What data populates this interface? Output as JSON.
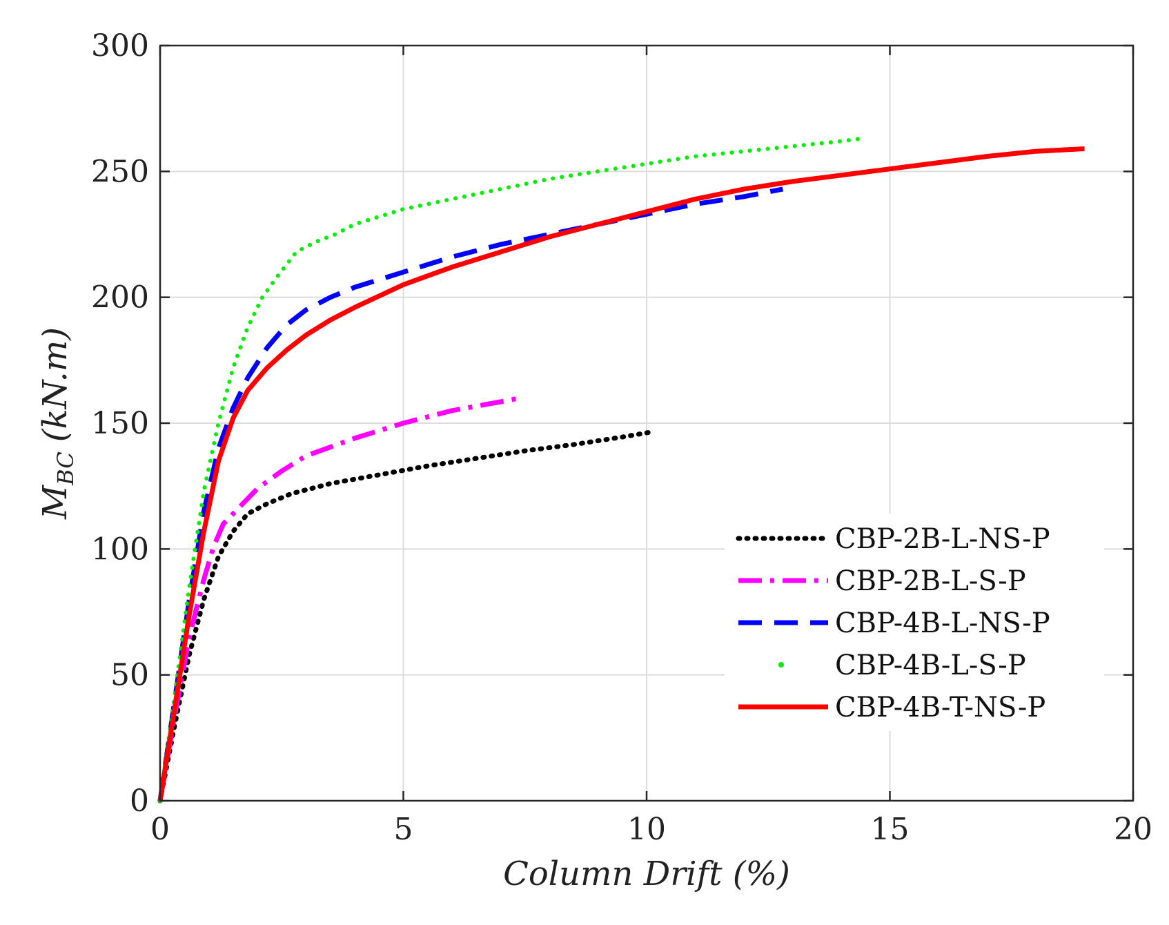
{
  "chart_data": {
    "type": "line",
    "title": "",
    "xlabel": "Column Drift (%)",
    "ylabel": "M_BC (kN.m)",
    "ylabel_main": "M",
    "ylabel_sub": "BC",
    "ylabel_unit": "(kN.m)",
    "xlim": [
      0,
      20
    ],
    "ylim": [
      0,
      300
    ],
    "xticks": [
      0,
      5,
      10,
      15,
      20
    ],
    "yticks": [
      0,
      50,
      100,
      150,
      200,
      250,
      300
    ],
    "grid": true,
    "legend_position": "bottom-right",
    "series": [
      {
        "name": "CBP-2B-L-NS-P",
        "color": "#000000",
        "style": "dotted",
        "x": [
          0,
          0.3,
          0.6,
          0.9,
          1.2,
          1.5,
          1.8,
          2.2,
          2.7,
          3.5,
          4.5,
          5.5,
          6.5,
          7.5,
          8.5,
          9.5,
          10.1
        ],
        "y": [
          0,
          30,
          58,
          80,
          97,
          107,
          114,
          118,
          122,
          126,
          129.5,
          133,
          136,
          139,
          141.5,
          144.5,
          146.5
        ]
      },
      {
        "name": "CBP-2B-L-S-P",
        "color": "#ff00ff",
        "style": "dashdot",
        "x": [
          0,
          0.3,
          0.6,
          0.9,
          1.1,
          1.3,
          1.6,
          2.0,
          2.5,
          3.0,
          4.0,
          5.0,
          6.0,
          7.0,
          7.4
        ],
        "y": [
          0,
          34,
          65,
          88,
          101,
          110,
          116,
          124,
          131,
          137,
          144,
          150,
          155,
          158.5,
          160
        ]
      },
      {
        "name": "CBP-4B-L-NS-P",
        "color": "#0000ff",
        "style": "dashed",
        "x": [
          0,
          0.3,
          0.6,
          0.9,
          1.2,
          1.5,
          1.8,
          2.2,
          2.6,
          3.0,
          3.5,
          4.0,
          5.0,
          6.0,
          7.0,
          8.0,
          9.0,
          10.0,
          11.0,
          12.0,
          12.8
        ],
        "y": [
          0,
          40,
          80,
          115,
          140,
          156,
          168,
          180,
          189,
          195,
          200,
          204,
          210,
          216,
          221,
          225,
          229,
          233,
          237,
          240,
          243
        ]
      },
      {
        "name": "CBP-4B-L-S-P",
        "color": "#00ee00",
        "style": "dots",
        "x": [
          0,
          0.3,
          0.6,
          0.9,
          1.2,
          1.5,
          1.8,
          2.1,
          2.4,
          2.8,
          3.2,
          3.6,
          4.0,
          5.0,
          6.0,
          7.0,
          8.0,
          9.0,
          10.0,
          11.0,
          12.0,
          13.0,
          14.0,
          14.4
        ],
        "y": [
          0,
          42,
          85,
          123,
          150,
          172,
          188,
          200,
          208,
          218,
          222,
          225,
          229,
          235,
          239,
          243,
          247,
          250,
          253,
          256,
          258,
          260,
          262,
          263
        ]
      },
      {
        "name": "CBP-4B-T-NS-P",
        "color": "#ff0000",
        "style": "solid",
        "x": [
          0,
          0.3,
          0.6,
          0.9,
          1.2,
          1.5,
          1.8,
          2.2,
          2.6,
          3.0,
          3.5,
          4.0,
          5.0,
          6.0,
          7.0,
          8.0,
          9.0,
          10.0,
          11.0,
          12.0,
          13.0,
          14.0,
          15.0,
          16.0,
          17.0,
          18.0,
          19.0
        ],
        "y": [
          0,
          37,
          74,
          107,
          135,
          152,
          163,
          172,
          179,
          185,
          191,
          196,
          205,
          212,
          218,
          224,
          229,
          234,
          239,
          243,
          246,
          248.5,
          251,
          253.5,
          256,
          258,
          259
        ]
      }
    ]
  }
}
